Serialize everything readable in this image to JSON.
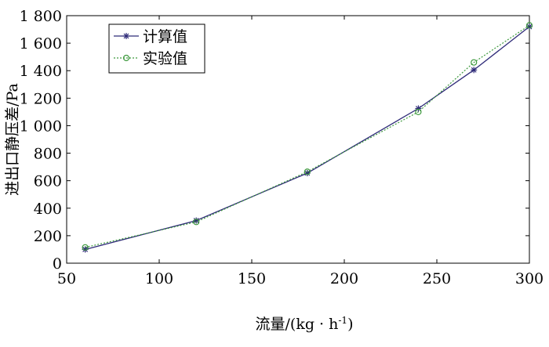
{
  "chart_data": {
    "type": "line",
    "x": [
      60,
      120,
      180,
      240,
      270,
      300
    ],
    "series": [
      {
        "name": "计算值",
        "values": [
          100,
          310,
          655,
          1125,
          1405,
          1720
        ],
        "color": "#2e2a78",
        "style": "solid",
        "marker": "star"
      },
      {
        "name": "实验值",
        "values": [
          115,
          300,
          665,
          1100,
          1460,
          1730
        ],
        "color": "#3f9a3f",
        "style": "dotted",
        "marker": "circle"
      }
    ],
    "xlabel": "流量/(kg · h",
    "xlabel_sup": "-1",
    "xlabel_end": ")",
    "ylabel": "进出口静压差/Pa",
    "xlim": [
      50,
      300
    ],
    "ylim": [
      0,
      1800
    ],
    "xticks": [
      50,
      100,
      150,
      200,
      250,
      300
    ],
    "xtick_labels": [
      "50",
      "100",
      "150",
      "200",
      "250",
      "300"
    ],
    "yticks": [
      0,
      200,
      400,
      600,
      800,
      1000,
      1200,
      1400,
      1600,
      1800
    ],
    "ytick_labels": [
      "0",
      "200",
      "400",
      "600",
      "800",
      "1 000",
      "1 200",
      "1 400",
      "1 600",
      "1 800"
    ],
    "grid": false,
    "legend_position": "top-left"
  }
}
